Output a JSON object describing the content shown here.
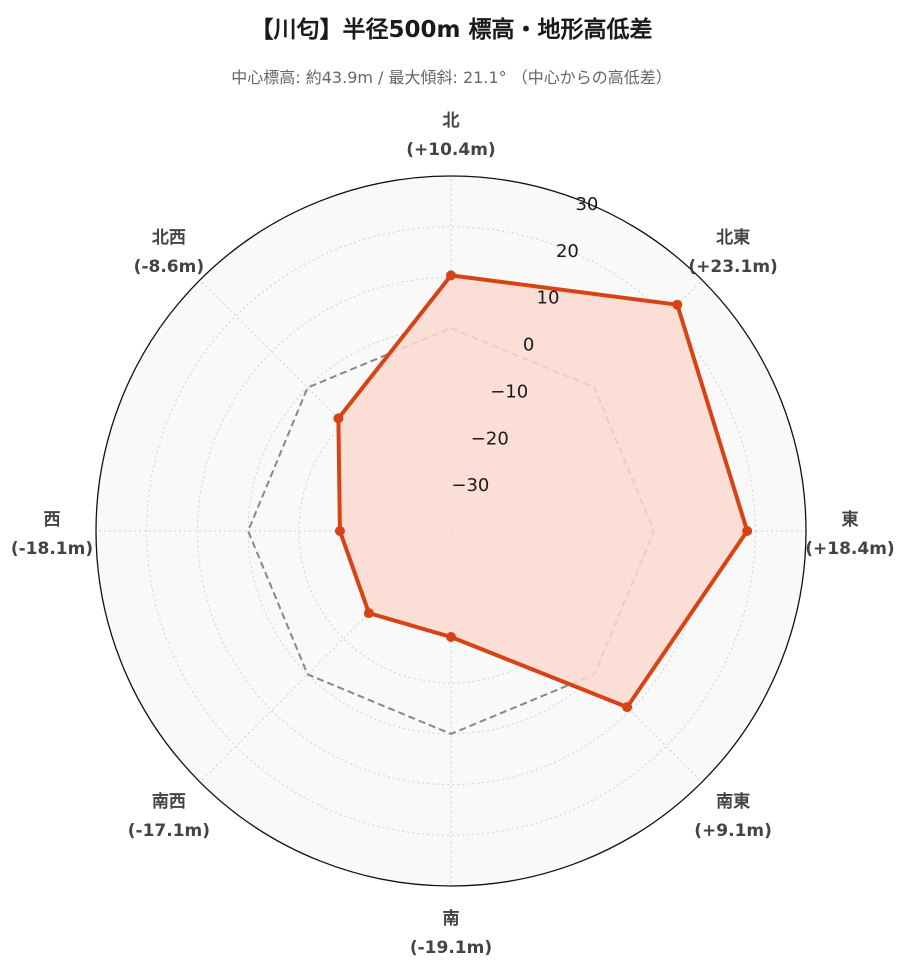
{
  "title": "【川匂】半径500m 標高・地形高低差",
  "subtitle": "中心標高: 約43.9m / 最大傾斜: 21.1°  （中心からの高低差）",
  "colors": {
    "series": "#d84315",
    "fill": "#fbd9cf",
    "reference": "#888888",
    "background": "#f9f9f9",
    "grid": "#d0d0d0"
  },
  "chart_data": {
    "type": "radar",
    "title": "【川匂】半径500m 標高・地形高低差",
    "subtitle": "中心標高: 約43.9m / 最大傾斜: 21.1°  （中心からの高低差）",
    "categories": [
      "北",
      "北東",
      "東",
      "南東",
      "南",
      "南西",
      "西",
      "北西"
    ],
    "category_labels": [
      "(+10.4m)",
      "(+23.1m)",
      "(+18.4m)",
      "(+9.1m)",
      "(-19.1m)",
      "(-17.1m)",
      "(-18.1m)",
      "(-8.6m)"
    ],
    "series": [
      {
        "values": [
          10.4,
          23.1,
          18.4,
          9.1,
          -19.1,
          -17.1,
          -18.1,
          -8.6
        ]
      }
    ],
    "reference_line": {
      "value": 0,
      "style": "dashed"
    },
    "r_range": [
      -40,
      30
    ],
    "r_ticks": [
      -30,
      -20,
      -10,
      0,
      10,
      20,
      30
    ],
    "grid": true
  }
}
